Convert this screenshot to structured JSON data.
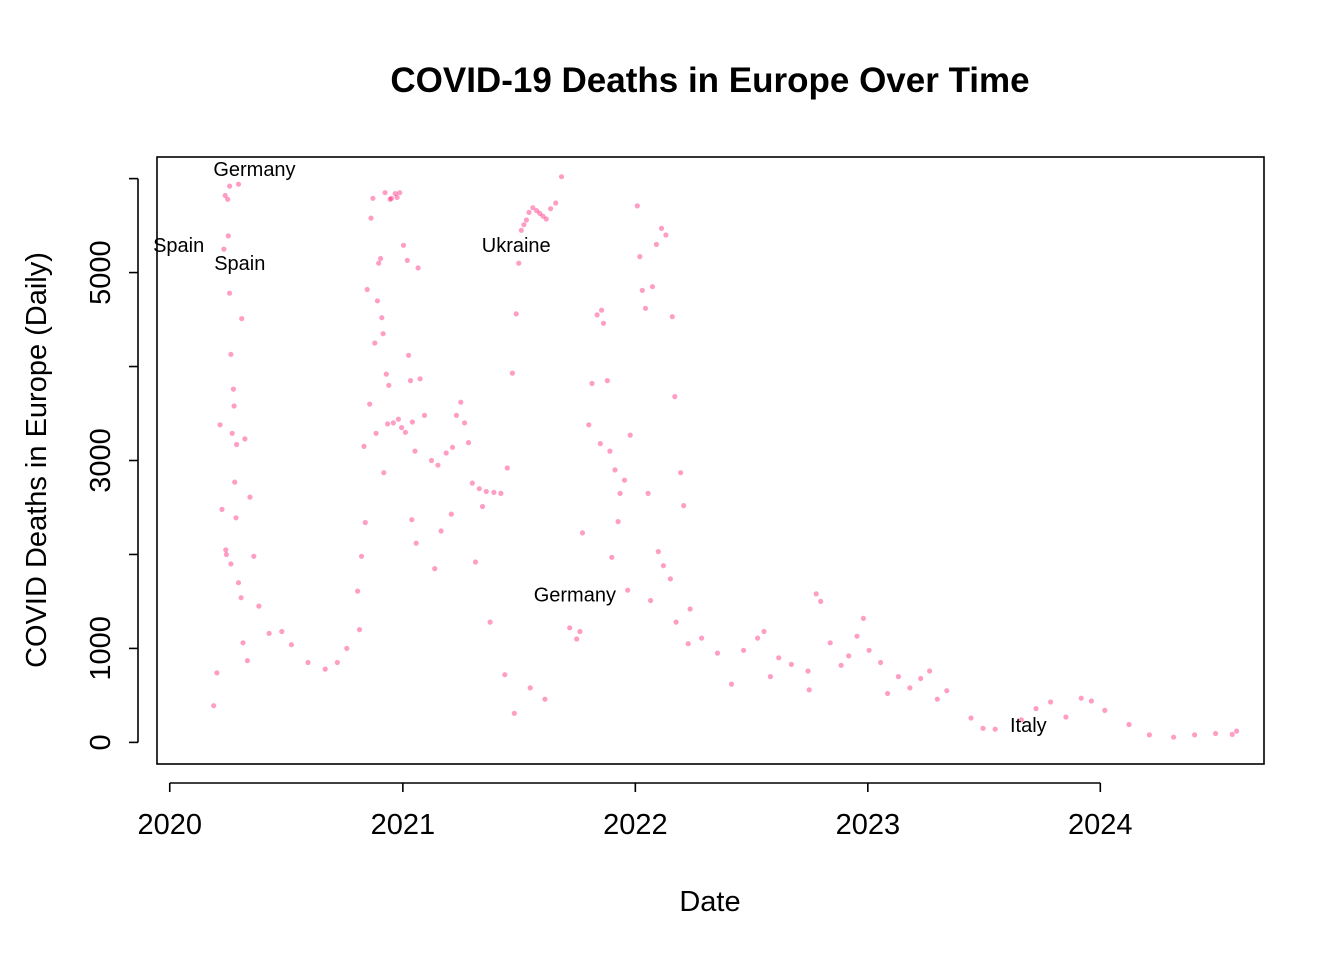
{
  "chart_data": {
    "type": "scatter",
    "title": "COVID-19 Deaths in Europe Over Time",
    "xlabel": "Date",
    "ylabel": "COVID Deaths in Europe (Daily)",
    "x_type": "date",
    "xlim": [
      "2019-12-12",
      "2024-09-14"
    ],
    "ylim": [
      -230,
      6230
    ],
    "x_ticks": [
      {
        "value": "2020-01-01",
        "label": "2020"
      },
      {
        "value": "2021-01-01",
        "label": "2021"
      },
      {
        "value": "2022-01-01",
        "label": "2022"
      },
      {
        "value": "2023-01-01",
        "label": "2023"
      },
      {
        "value": "2024-01-01",
        "label": "2024"
      }
    ],
    "y_ticks": [
      0,
      1000,
      2000,
      3000,
      4000,
      5000,
      6000
    ],
    "y_tick_labels": [
      {
        "value": 0,
        "label": "0"
      },
      {
        "value": 1000,
        "label": "1000"
      },
      {
        "value": 3000,
        "label": "3000"
      },
      {
        "value": 5000,
        "label": "5000"
      }
    ],
    "point_color": "#ff0066",
    "point_opacity": 0.38,
    "grid": false,
    "legend": "none",
    "annotations": [
      {
        "text": "Germany",
        "x": "2020-05-13",
        "y": 6030
      },
      {
        "text": "Spain",
        "x": "2020-01-15",
        "y": 5220
      },
      {
        "text": "Spain",
        "x": "2020-04-20",
        "y": 5030
      },
      {
        "text": "Ukraine",
        "x": "2021-06-28",
        "y": 5220
      },
      {
        "text": "Germany",
        "x": "2021-09-28",
        "y": 1500
      },
      {
        "text": "Italy",
        "x": "2023-09-10",
        "y": 110
      }
    ],
    "points": [
      [
        "2020-03-20",
        3380
      ],
      [
        "2020-03-23",
        2480
      ],
      [
        "2020-03-26",
        5250
      ],
      [
        "2020-03-28",
        5820
      ],
      [
        "2020-04-01",
        5780
      ],
      [
        "2020-04-02",
        5390
      ],
      [
        "2020-04-04",
        5920
      ],
      [
        "2020-04-04",
        4780
      ],
      [
        "2020-04-06",
        4130
      ],
      [
        "2020-04-08",
        3290
      ],
      [
        "2020-04-10",
        3760
      ],
      [
        "2020-04-11",
        3580
      ],
      [
        "2020-04-12",
        2770
      ],
      [
        "2020-04-15",
        3170
      ],
      [
        "2020-04-18",
        5940
      ],
      [
        "2020-04-23",
        4510
      ],
      [
        "2020-04-28",
        3230
      ],
      [
        "2020-05-06",
        2610
      ],
      [
        "2020-05-12",
        1980
      ],
      [
        "2020-03-29",
        2050
      ],
      [
        "2020-03-30",
        2000
      ],
      [
        "2020-04-06",
        1900
      ],
      [
        "2020-04-14",
        2390
      ],
      [
        "2020-04-18",
        1700
      ],
      [
        "2020-04-22",
        1540
      ],
      [
        "2020-05-20",
        1450
      ],
      [
        "2020-06-05",
        1160
      ],
      [
        "2020-06-25",
        1180
      ],
      [
        "2020-07-10",
        1040
      ],
      [
        "2020-08-05",
        850
      ],
      [
        "2020-09-01",
        780
      ],
      [
        "2020-09-20",
        850
      ],
      [
        "2020-10-05",
        1000
      ],
      [
        "2020-10-25",
        1200
      ],
      [
        "2020-11-01",
        3150
      ],
      [
        "2020-11-06",
        4820
      ],
      [
        "2020-11-10",
        3600
      ],
      [
        "2020-11-12",
        5580
      ],
      [
        "2020-11-15",
        5790
      ],
      [
        "2020-11-18",
        4250
      ],
      [
        "2020-11-20",
        3290
      ],
      [
        "2020-11-22",
        4700
      ],
      [
        "2020-11-24",
        5100
      ],
      [
        "2020-11-27",
        5150
      ],
      [
        "2020-11-29",
        4520
      ],
      [
        "2020-12-01",
        4350
      ],
      [
        "2020-12-04",
        5850
      ],
      [
        "2020-12-06",
        3920
      ],
      [
        "2020-12-08",
        3390
      ],
      [
        "2020-12-10",
        3800
      ],
      [
        "2020-12-12",
        5780
      ],
      [
        "2020-12-14",
        5790
      ],
      [
        "2020-12-17",
        3400
      ],
      [
        "2020-12-20",
        5840
      ],
      [
        "2020-12-23",
        5800
      ],
      [
        "2020-12-25",
        3440
      ],
      [
        "2020-12-27",
        5850
      ],
      [
        "2020-12-30",
        3350
      ],
      [
        "2021-01-02",
        5290
      ],
      [
        "2021-01-05",
        3300
      ],
      [
        "2021-01-08",
        5130
      ],
      [
        "2021-01-10",
        4120
      ],
      [
        "2021-01-13",
        3850
      ],
      [
        "2021-01-16",
        3410
      ],
      [
        "2021-01-20",
        3100
      ],
      [
        "2021-01-25",
        5050
      ],
      [
        "2021-01-28",
        3870
      ],
      [
        "2021-02-04",
        3480
      ],
      [
        "2021-02-15",
        3000
      ],
      [
        "2021-02-25",
        2950
      ],
      [
        "2021-03-10",
        3080
      ],
      [
        "2021-03-20",
        3140
      ],
      [
        "2021-03-26",
        3480
      ],
      [
        "2021-04-02",
        3620
      ],
      [
        "2021-04-08",
        3400
      ],
      [
        "2021-04-14",
        3190
      ],
      [
        "2021-04-20",
        2760
      ],
      [
        "2021-05-01",
        2700
      ],
      [
        "2021-05-12",
        2670
      ],
      [
        "2021-05-24",
        2660
      ],
      [
        "2021-06-04",
        2650
      ],
      [
        "2021-06-14",
        2920
      ],
      [
        "2021-06-22",
        3930
      ],
      [
        "2021-06-28",
        4560
      ],
      [
        "2021-07-02",
        5100
      ],
      [
        "2021-07-06",
        5450
      ],
      [
        "2021-07-10",
        5510
      ],
      [
        "2021-07-14",
        5560
      ],
      [
        "2021-07-18",
        5640
      ],
      [
        "2021-07-24",
        5690
      ],
      [
        "2021-07-30",
        5660
      ],
      [
        "2021-08-04",
        5630
      ],
      [
        "2021-08-09",
        5600
      ],
      [
        "2021-08-14",
        5570
      ],
      [
        "2021-08-21",
        5680
      ],
      [
        "2021-08-29",
        5740
      ],
      [
        "2021-09-07",
        6020
      ],
      [
        "2021-10-10",
        2230
      ],
      [
        "2021-10-20",
        3380
      ],
      [
        "2021-10-25",
        3820
      ],
      [
        "2021-11-02",
        4550
      ],
      [
        "2021-11-07",
        3180
      ],
      [
        "2021-11-09",
        4600
      ],
      [
        "2021-11-12",
        4460
      ],
      [
        "2021-11-18",
        3850
      ],
      [
        "2021-11-22",
        3100
      ],
      [
        "2021-11-30",
        2900
      ],
      [
        "2021-12-08",
        2650
      ],
      [
        "2021-12-15",
        2790
      ],
      [
        "2021-12-24",
        3270
      ],
      [
        "2022-01-04",
        5710
      ],
      [
        "2022-01-08",
        5170
      ],
      [
        "2022-01-12",
        4810
      ],
      [
        "2022-01-17",
        4620
      ],
      [
        "2022-01-28",
        4850
      ],
      [
        "2022-02-03",
        5300
      ],
      [
        "2022-02-11",
        5470
      ],
      [
        "2022-02-18",
        5400
      ],
      [
        "2022-02-28",
        4530
      ],
      [
        "2022-03-04",
        3680
      ],
      [
        "2022-03-13",
        2870
      ],
      [
        "2022-03-18",
        2520
      ],
      [
        "2022-01-21",
        2650
      ],
      [
        "2022-02-06",
        2030
      ],
      [
        "2022-02-25",
        1740
      ],
      [
        "2022-03-28",
        1420
      ],
      [
        "2022-04-15",
        1110
      ],
      [
        "2022-05-10",
        950
      ],
      [
        "2022-06-20",
        980
      ],
      [
        "2022-07-12",
        1110
      ],
      [
        "2022-07-22",
        1180
      ],
      [
        "2022-08-14",
        900
      ],
      [
        "2022-09-03",
        830
      ],
      [
        "2022-09-29",
        760
      ],
      [
        "2022-10-12",
        1580
      ],
      [
        "2022-10-19",
        1500
      ],
      [
        "2022-11-03",
        1060
      ],
      [
        "2022-11-20",
        820
      ],
      [
        "2022-12-02",
        920
      ],
      [
        "2022-12-15",
        1130
      ],
      [
        "2022-12-25",
        1320
      ],
      [
        "2023-01-03",
        980
      ],
      [
        "2023-01-21",
        850
      ],
      [
        "2023-02-18",
        700
      ],
      [
        "2023-03-08",
        580
      ],
      [
        "2023-03-25",
        680
      ],
      [
        "2023-04-08",
        760
      ],
      [
        "2023-05-05",
        550
      ],
      [
        "2023-06-12",
        260
      ],
      [
        "2023-07-20",
        140
      ],
      [
        "2023-08-30",
        240
      ],
      [
        "2023-09-22",
        360
      ],
      [
        "2023-10-15",
        430
      ],
      [
        "2023-11-08",
        270
      ],
      [
        "2023-12-02",
        470
      ],
      [
        "2023-12-18",
        440
      ],
      [
        "2024-01-08",
        340
      ],
      [
        "2024-02-15",
        190
      ],
      [
        "2024-03-18",
        80
      ],
      [
        "2024-04-25",
        55
      ],
      [
        "2024-05-28",
        80
      ],
      [
        "2024-06-30",
        95
      ],
      [
        "2024-07-26",
        85
      ],
      [
        "2024-08-02",
        120
      ],
      [
        "2021-02-20",
        1850
      ],
      [
        "2021-03-02",
        2250
      ],
      [
        "2021-03-18",
        2430
      ],
      [
        "2021-04-25",
        1920
      ],
      [
        "2021-05-06",
        2510
      ],
      [
        "2021-05-18",
        1280
      ],
      [
        "2021-01-15",
        2370
      ],
      [
        "2021-01-22",
        2120
      ],
      [
        "2020-12-02",
        2870
      ],
      [
        "2020-11-03",
        2340
      ],
      [
        "2020-10-28",
        1980
      ],
      [
        "2020-10-22",
        1610
      ],
      [
        "2021-09-20",
        1220
      ],
      [
        "2021-10-01",
        1100
      ],
      [
        "2021-10-06",
        1180
      ],
      [
        "2021-11-25",
        1970
      ],
      [
        "2021-12-05",
        2350
      ],
      [
        "2021-12-20",
        1620
      ],
      [
        "2022-01-25",
        1510
      ],
      [
        "2022-02-14",
        1880
      ],
      [
        "2022-03-06",
        1280
      ],
      [
        "2022-03-25",
        1050
      ],
      [
        "2020-04-25",
        1060
      ],
      [
        "2020-05-02",
        870
      ],
      [
        "2020-03-15",
        740
      ],
      [
        "2020-03-10",
        390
      ],
      [
        "2021-07-20",
        580
      ],
      [
        "2021-08-12",
        460
      ],
      [
        "2021-06-10",
        720
      ],
      [
        "2021-06-25",
        310
      ],
      [
        "2022-06-01",
        620
      ],
      [
        "2022-08-01",
        700
      ],
      [
        "2022-10-01",
        560
      ],
      [
        "2023-02-01",
        520
      ],
      [
        "2023-04-20",
        460
      ],
      [
        "2023-07-01",
        150
      ]
    ]
  }
}
